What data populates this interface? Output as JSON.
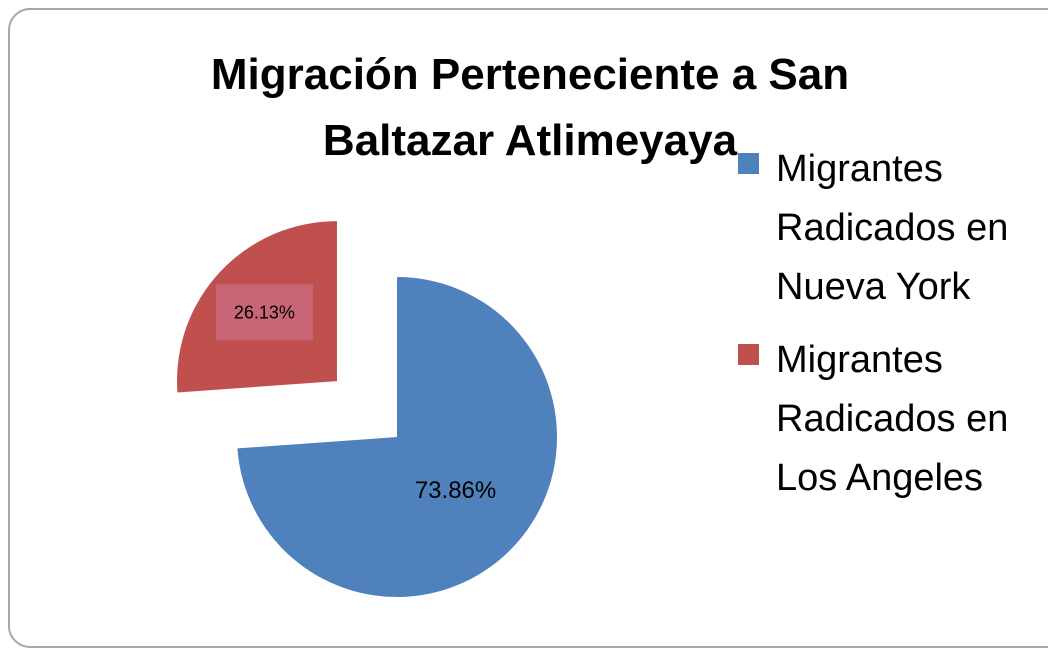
{
  "chart_data": {
    "type": "pie",
    "title": "Migración Perteneciente a San Baltazar Atlimeyaya",
    "categories": [
      "Migrantes Radicados en Nueva York",
      "Migrantes Radicados en Los Angeles"
    ],
    "values": [
      73.86,
      26.13
    ],
    "value_labels": [
      "73.86%",
      "26.13%"
    ],
    "colors": [
      "#4f81bd",
      "#c0504d"
    ],
    "exploded": [
      false,
      true
    ],
    "legend": "right"
  }
}
